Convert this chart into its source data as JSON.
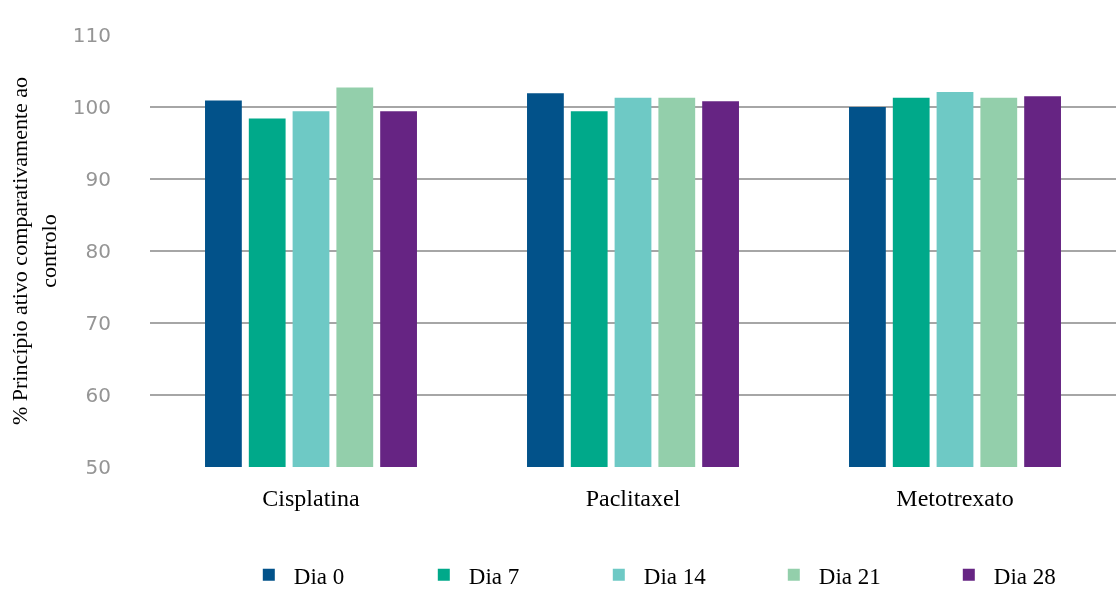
{
  "chart_data": {
    "type": "bar",
    "ylabel": "% Princípio ativo comparativamente ao controlo",
    "categories": [
      "Cisplatina",
      "Paclitaxel",
      "Metotrexato"
    ],
    "series": [
      {
        "name": "Dia 0",
        "color": "#02528a",
        "values": [
          100.9,
          101.9,
          100.0
        ]
      },
      {
        "name": "Dia 7",
        "color": "#00a98a",
        "values": [
          98.4,
          99.4,
          101.3
        ]
      },
      {
        "name": "Dia 14",
        "color": "#6ec9c5",
        "values": [
          99.4,
          101.3,
          102.1
        ]
      },
      {
        "name": "Dia 21",
        "color": "#93cfab",
        "values": [
          102.7,
          101.3,
          101.3
        ]
      },
      {
        "name": "Dia 28",
        "color": "#662483",
        "values": [
          99.4,
          100.8,
          101.5
        ]
      }
    ],
    "ylim": [
      50,
      110
    ],
    "yticks": [
      50,
      60,
      70,
      80,
      90,
      100,
      110
    ],
    "grid": "y",
    "legend": "bottom"
  }
}
